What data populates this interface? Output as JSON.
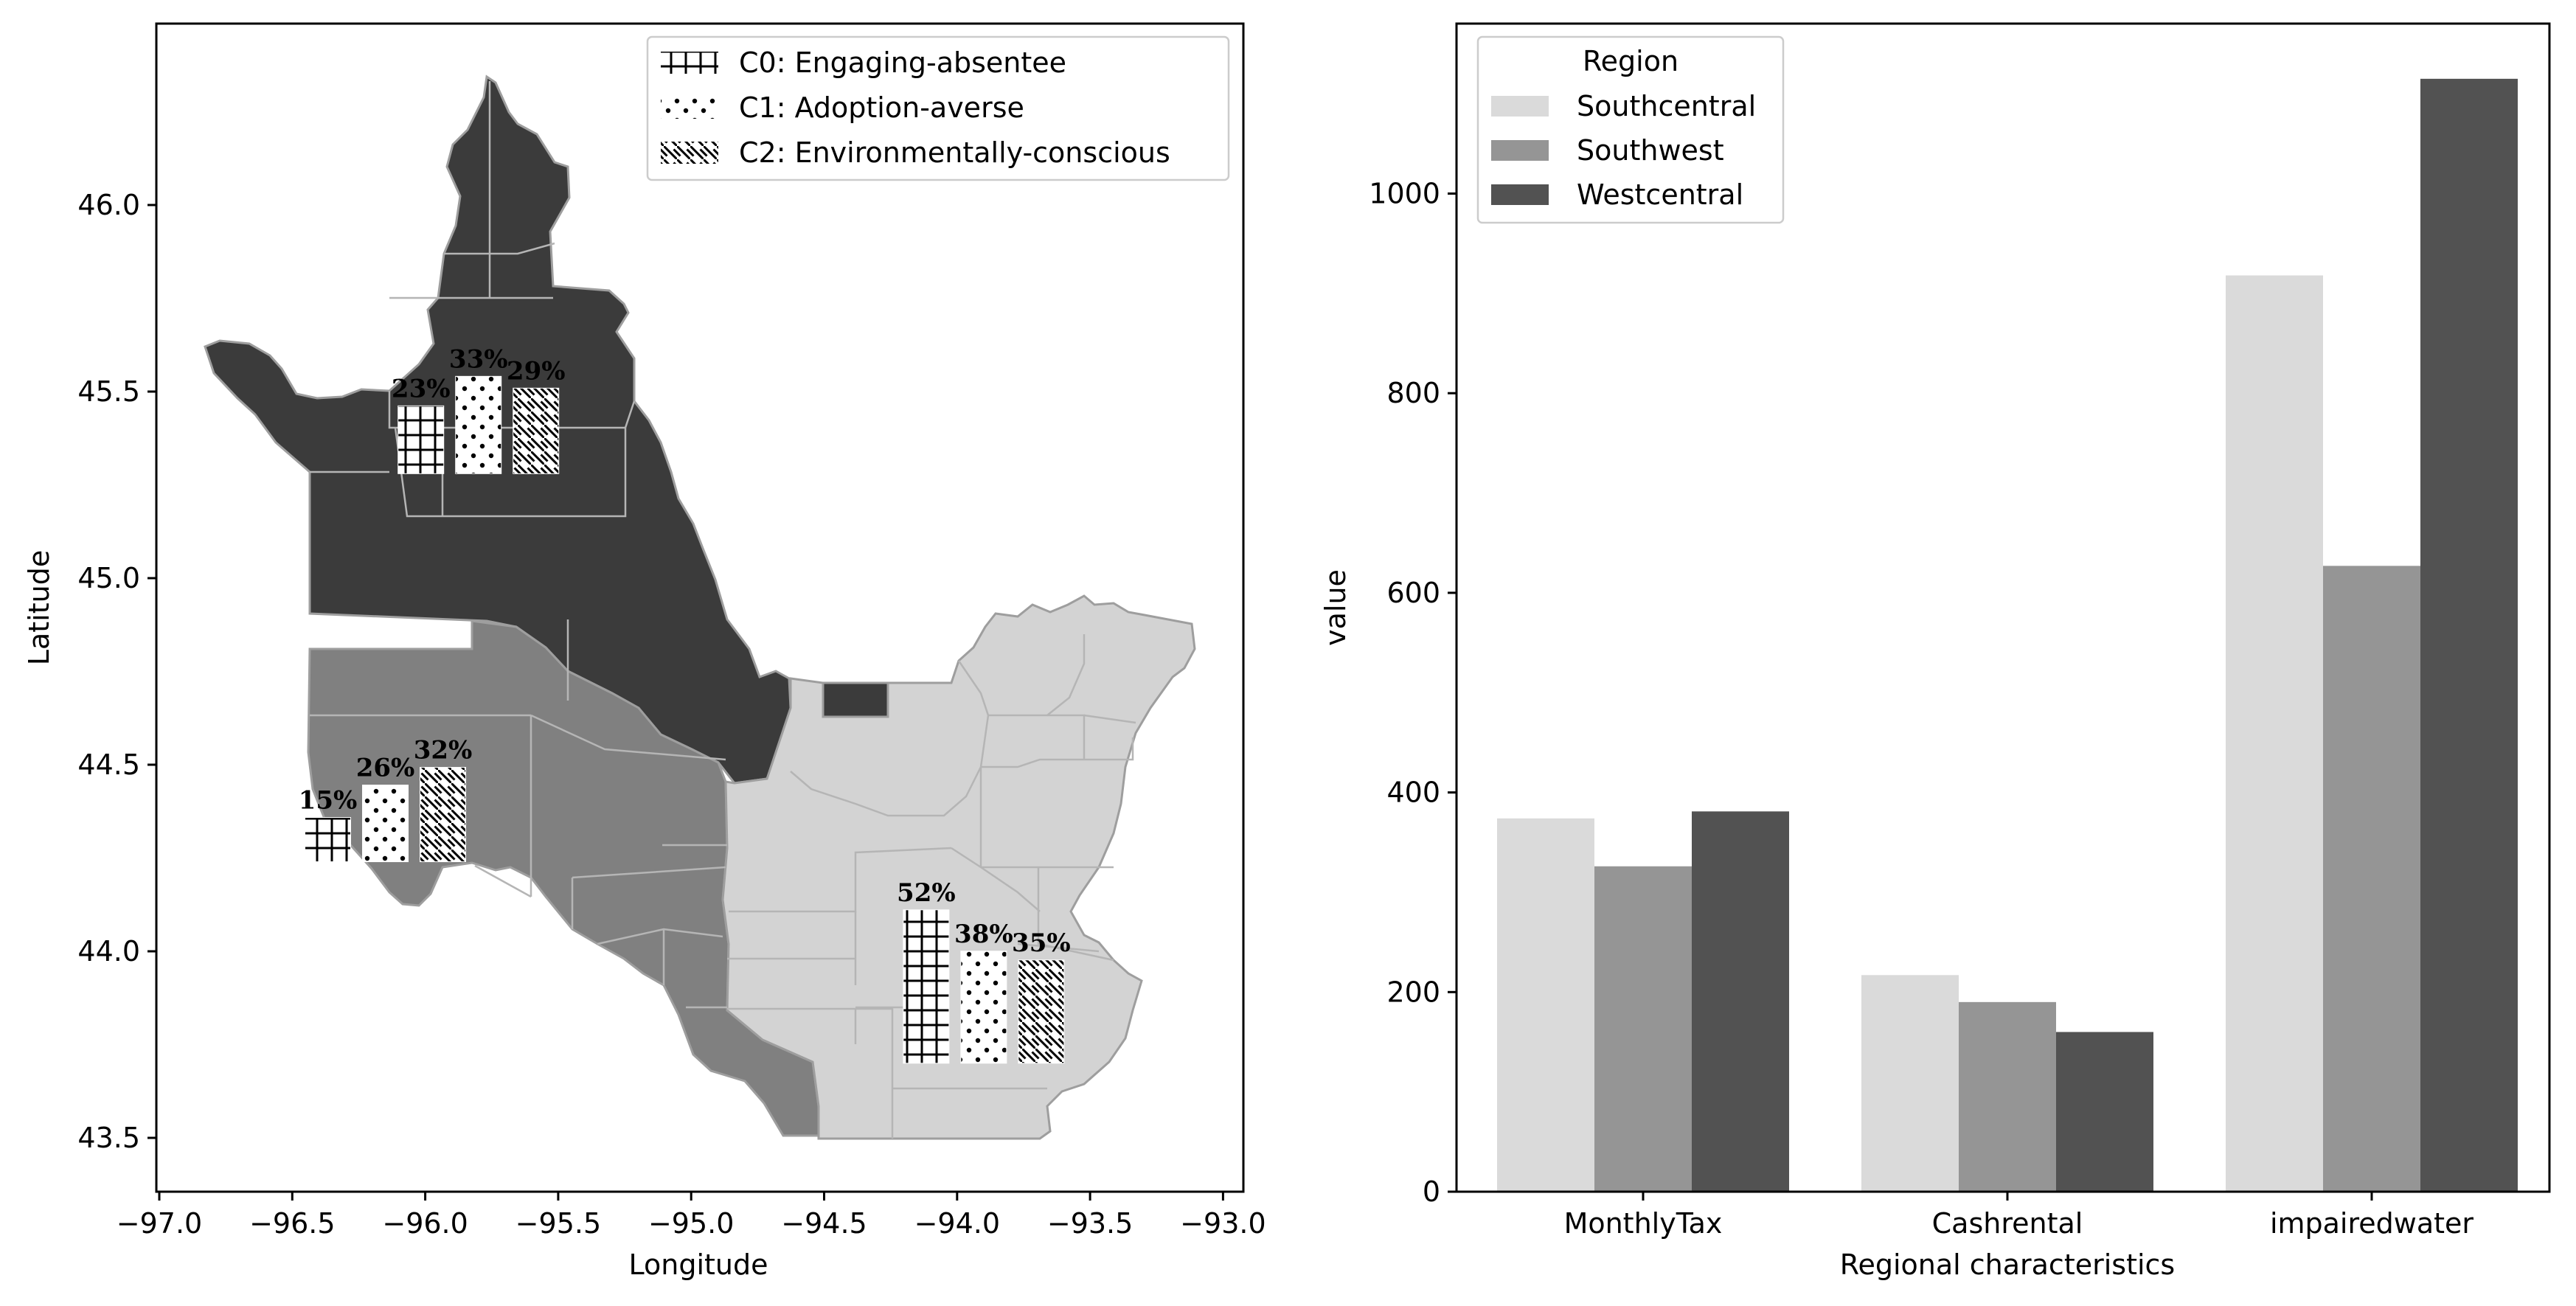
{
  "figure": {
    "left_panel": {
      "xlabel": "Longitude",
      "ylabel": "Latitude",
      "xticks": [
        "−97.0",
        "−96.5",
        "−96.0",
        "−95.5",
        "−95.0",
        "−94.5",
        "−94.0",
        "−93.5",
        "−93.0"
      ],
      "yticks": [
        "43.5",
        "44.0",
        "44.5",
        "45.0",
        "45.5",
        "46.0"
      ],
      "legend": [
        {
          "label": "C0: Engaging-absentee",
          "pattern": "grid"
        },
        {
          "label": "C1: Adoption-averse",
          "pattern": "dots"
        },
        {
          "label": "C2: Environmentally-conscious",
          "pattern": "diagonal"
        }
      ],
      "region_colors": {
        "Westcentral": "#3b3b3b",
        "Southwest": "#808080",
        "Southcentral": "#d3d3d3"
      }
    },
    "right_panel": {
      "xlabel": "Regional characteristics",
      "ylabel": "value",
      "legend_title": "Region",
      "yticks": [
        "0",
        "200",
        "400",
        "600",
        "800",
        "1000"
      ]
    }
  },
  "chart_data": [
    {
      "type": "map",
      "title": "",
      "xlabel": "Longitude",
      "ylabel": "Latitude",
      "xlim": [
        -97.0,
        -93.0
      ],
      "ylim": [
        43.5,
        46.0
      ],
      "bar_groups": [
        {
          "region": "Westcentral",
          "lon": -95.8,
          "base_lat": 45.28,
          "values": [
            23,
            33,
            29
          ],
          "labels": [
            "23%",
            "33%",
            "29%"
          ]
        },
        {
          "region": "Southwest",
          "lon": -96.15,
          "base_lat": 44.24,
          "values": [
            15,
            26,
            32
          ],
          "labels": [
            "15%",
            "26%",
            "32%"
          ]
        },
        {
          "region": "Southcentral",
          "lon": -93.9,
          "base_lat": 43.7,
          "values": [
            52,
            38,
            35
          ],
          "labels": [
            "52%",
            "38%",
            "35%"
          ]
        }
      ],
      "legend": [
        "C0: Engaging-absentee",
        "C1: Adoption-averse",
        "C2: Environmentally-conscious"
      ],
      "legend_position": "top-right"
    },
    {
      "type": "bar",
      "title": "",
      "xlabel": "Regional characteristics",
      "ylabel": "value",
      "categories": [
        "MonthlyTax",
        "Cashrental",
        "impairedwater"
      ],
      "series": [
        {
          "name": "Southcentral",
          "color": "#dadada",
          "values": [
            374,
            217,
            918
          ]
        },
        {
          "name": "Southwest",
          "color": "#959595",
          "values": [
            326,
            190,
            627
          ]
        },
        {
          "name": "Westcentral",
          "color": "#525252",
          "values": [
            381,
            160,
            1115
          ]
        }
      ],
      "ylim": [
        0,
        1170
      ],
      "legend_title": "Region",
      "legend_position": "top-left",
      "grid": false
    }
  ]
}
